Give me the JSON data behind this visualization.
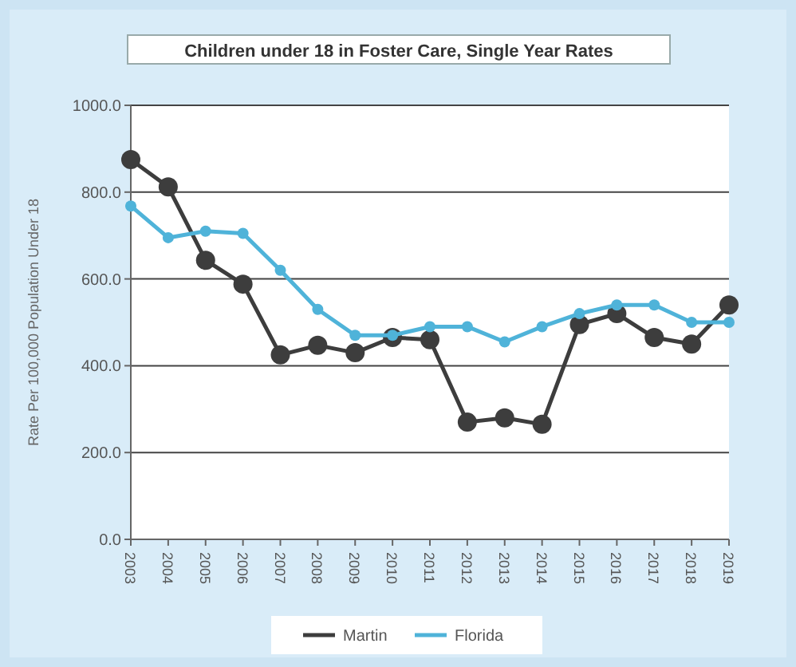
{
  "chart_data": {
    "type": "line",
    "title": "Children under 18 in Foster Care, Single Year Rates",
    "ylabel": "Rate Per 100,000 Population Under 18",
    "categories": [
      "2003",
      "2004",
      "2005",
      "2006",
      "2007",
      "2008",
      "2009",
      "2010",
      "2011",
      "2012",
      "2013",
      "2014",
      "2015",
      "2016",
      "2017",
      "2018",
      "2019"
    ],
    "series": [
      {
        "name": "Martin",
        "color": "#3d3d3d",
        "values": [
          875,
          812,
          643,
          588,
          425,
          447,
          430,
          465,
          460,
          270,
          280,
          265,
          495,
          520,
          465,
          450,
          540
        ]
      },
      {
        "name": "Florida",
        "color": "#4fb3d9",
        "values": [
          768,
          695,
          710,
          705,
          620,
          530,
          470,
          470,
          490,
          490,
          455,
          490,
          520,
          540,
          540,
          500,
          500
        ]
      }
    ],
    "ylim": [
      0,
      1000
    ],
    "yticks": [
      {
        "value": 0,
        "label": "0.0"
      },
      {
        "value": 200,
        "label": "200.0"
      },
      {
        "value": 400,
        "label": "400.0"
      },
      {
        "value": 600,
        "label": "600.0"
      },
      {
        "value": 800,
        "label": "800.0"
      },
      {
        "value": 1000,
        "label": "1000.0"
      }
    ],
    "grid": "y",
    "legend": "bottom",
    "marker": "circle",
    "line_style": "solid"
  }
}
